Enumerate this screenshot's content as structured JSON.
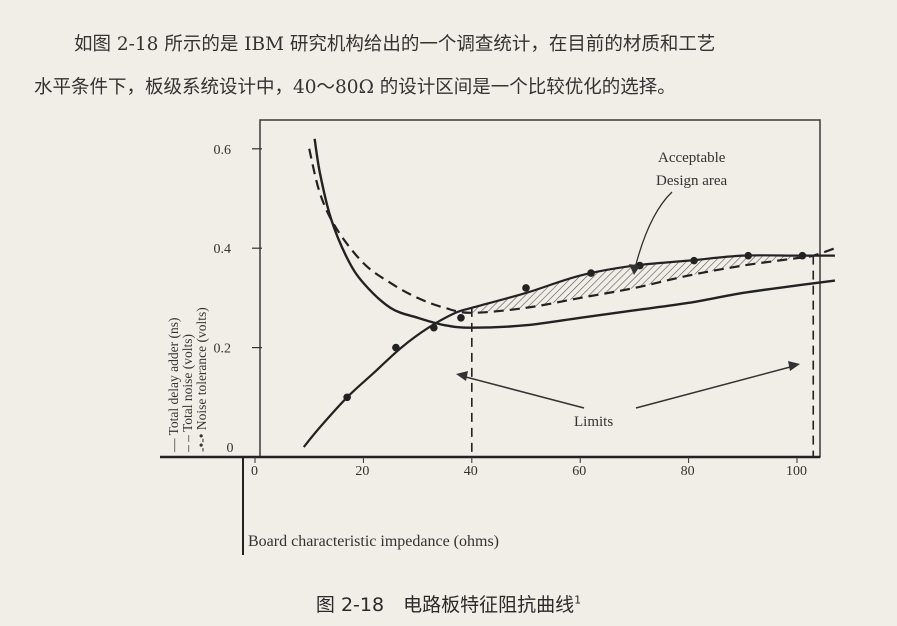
{
  "text": {
    "line1": "如图 2-18 所示的是 IBM 研究机构给出的一个调查统计，在目前的材质和工艺",
    "line2": "水平条件下，板级系统设计中，40～80Ω 的设计区间是一个比较优化的选择。",
    "caption": "图 2-18　电路板特征阻抗曲线",
    "caption_sup": "1"
  },
  "chart_data": {
    "type": "line",
    "xlabel": "Board characteristic impedance (ohms)",
    "ylabel_lines": [
      "— Total delay adder (ns)",
      "– – Total noise (volts)",
      "-•-• Noise tolerance (volts)"
    ],
    "x_ticks": [
      0,
      20,
      40,
      60,
      80,
      100
    ],
    "y_ticks": [
      "0",
      "0.2",
      "0.4",
      "0.6"
    ],
    "xlim": [
      -2,
      107
    ],
    "ylim": [
      0,
      0.65
    ],
    "series": [
      {
        "name": "Total delay adder (ns)",
        "style": "solid",
        "x": [
          11,
          12,
          14,
          17,
          20,
          25,
          30,
          35,
          40,
          50,
          60,
          70,
          80,
          90,
          100,
          107
        ],
        "y": [
          0.62,
          0.55,
          0.46,
          0.38,
          0.33,
          0.28,
          0.26,
          0.245,
          0.24,
          0.245,
          0.26,
          0.275,
          0.29,
          0.31,
          0.325,
          0.335
        ]
      },
      {
        "name": "Total noise (volts)",
        "style": "dashed",
        "x": [
          10,
          12,
          15,
          20,
          25,
          30,
          35,
          40,
          50,
          60,
          70,
          80,
          90,
          100,
          103,
          107
        ],
        "y": [
          0.6,
          0.51,
          0.44,
          0.37,
          0.33,
          0.3,
          0.28,
          0.27,
          0.28,
          0.3,
          0.32,
          0.345,
          0.365,
          0.38,
          0.385,
          0.4
        ]
      },
      {
        "name": "Noise tolerance (volts)",
        "style": "dot-marker",
        "x": [
          9,
          12,
          17,
          22,
          27,
          32,
          37,
          40,
          50,
          60,
          70,
          80,
          90,
          100,
          107
        ],
        "y": [
          0,
          0.04,
          0.1,
          0.15,
          0.2,
          0.24,
          0.27,
          0.28,
          0.31,
          0.345,
          0.365,
          0.375,
          0.385,
          0.385,
          0.385
        ]
      }
    ],
    "markers": {
      "x": [
        17,
        26,
        33,
        38,
        50,
        62,
        71,
        81,
        91,
        101
      ],
      "y": [
        0.1,
        0.2,
        0.24,
        0.26,
        0.32,
        0.35,
        0.365,
        0.375,
        0.385,
        0.385
      ]
    },
    "limits": [
      40,
      103
    ],
    "annotations": {
      "design_area": [
        "Acceptable",
        "Design area"
      ],
      "limits": "Limits"
    }
  }
}
